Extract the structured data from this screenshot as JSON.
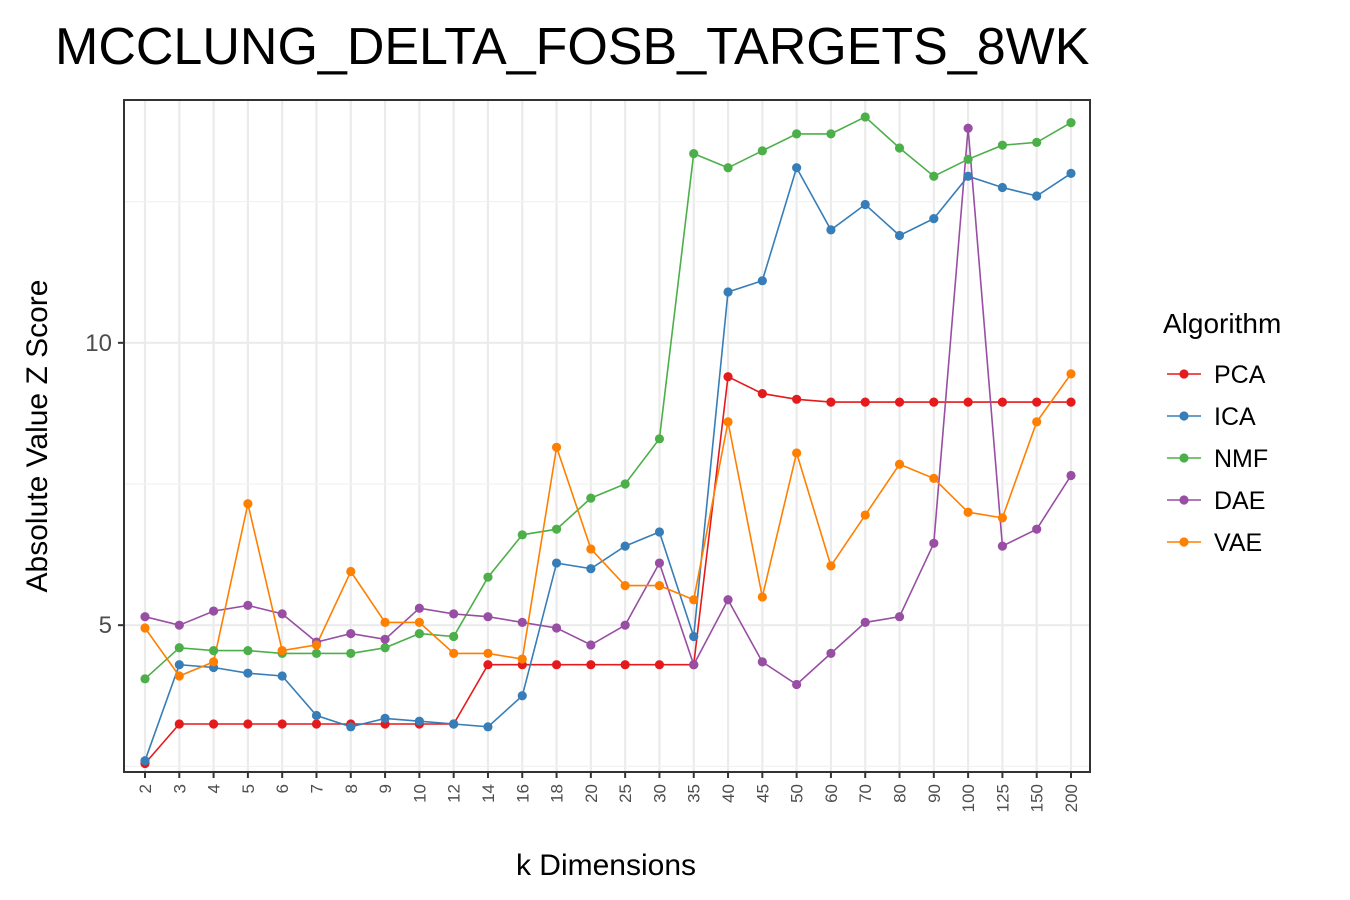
{
  "chart_data": {
    "type": "line",
    "title": "MCCLUNG_DELTA_FOSB_TARGETS_8WK",
    "xlabel": "k Dimensions",
    "ylabel": "Absolute Value Z Score",
    "x_scale": "categorical",
    "categories": [
      "2",
      "3",
      "4",
      "5",
      "6",
      "7",
      "8",
      "9",
      "10",
      "12",
      "14",
      "16",
      "18",
      "20",
      "25",
      "30",
      "35",
      "40",
      "45",
      "50",
      "60",
      "70",
      "80",
      "90",
      "100",
      "125",
      "150",
      "200"
    ],
    "ylim": [
      2.4,
      14.3
    ],
    "yticks": [
      5,
      10
    ],
    "ytick_labels": [
      "5",
      "10"
    ],
    "grid": true,
    "legend_title": "Algorithm",
    "legend_position": "right",
    "series": [
      {
        "name": "PCA",
        "color": "#e41a1c",
        "values": [
          2.55,
          3.25,
          3.25,
          3.25,
          3.25,
          3.25,
          3.25,
          3.25,
          3.25,
          3.25,
          4.3,
          4.3,
          4.3,
          4.3,
          4.3,
          4.3,
          4.3,
          9.4,
          9.1,
          9.0,
          8.95,
          8.95,
          8.95,
          8.95,
          8.95,
          8.95,
          8.95,
          8.95
        ]
      },
      {
        "name": "ICA",
        "color": "#377eb8",
        "values": [
          2.6,
          4.3,
          4.25,
          4.15,
          4.1,
          3.4,
          3.2,
          3.35,
          3.3,
          3.25,
          3.2,
          3.75,
          6.1,
          6.0,
          6.4,
          6.65,
          4.8,
          10.9,
          11.1,
          13.1,
          12.0,
          12.45,
          11.9,
          12.2,
          12.95,
          12.75,
          12.6,
          13.0
        ]
      },
      {
        "name": "NMF",
        "color": "#4daf4a",
        "values": [
          4.05,
          4.6,
          4.55,
          4.55,
          4.5,
          4.5,
          4.5,
          4.6,
          4.85,
          4.8,
          5.85,
          6.6,
          6.7,
          7.25,
          7.5,
          8.3,
          13.35,
          13.1,
          13.4,
          13.7,
          13.7,
          14.0,
          13.45,
          12.95,
          13.25,
          13.5,
          13.55,
          13.9
        ]
      },
      {
        "name": "DAE",
        "color": "#984ea3",
        "values": [
          5.15,
          5.0,
          5.25,
          5.35,
          5.2,
          4.7,
          4.85,
          4.75,
          5.3,
          5.2,
          5.15,
          5.05,
          4.95,
          4.65,
          5.0,
          6.1,
          4.3,
          5.45,
          4.35,
          3.95,
          4.5,
          5.05,
          5.15,
          6.45,
          13.8,
          6.4,
          6.7,
          7.65
        ]
      },
      {
        "name": "VAE",
        "color": "#ff7f00",
        "values": [
          4.95,
          4.1,
          4.35,
          7.15,
          4.55,
          4.65,
          5.95,
          5.05,
          5.05,
          4.5,
          4.5,
          4.4,
          8.15,
          6.35,
          5.7,
          5.7,
          5.45,
          8.6,
          5.5,
          8.05,
          6.05,
          6.95,
          7.85,
          7.6,
          7.0,
          6.9,
          8.6,
          9.45
        ]
      }
    ]
  }
}
